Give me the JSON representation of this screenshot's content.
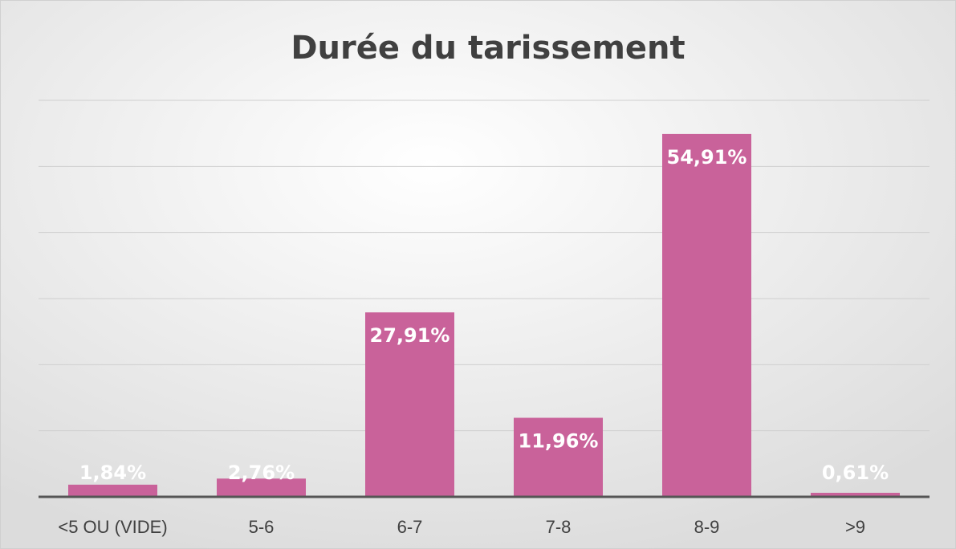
{
  "chart_data": {
    "type": "bar",
    "title": "Durée du tarissement",
    "categories": [
      "<5 OU (VIDE)",
      "5-6",
      "6-7",
      "7-8",
      "8-9",
      ">9"
    ],
    "values": [
      1.84,
      2.76,
      27.91,
      11.96,
      54.91,
      0.61
    ],
    "value_labels": [
      "1,84%",
      "2,76%",
      "27,91%",
      "11,96%",
      "54,91%",
      "0,61%"
    ],
    "color": "#c9629a",
    "ylim": [
      0,
      60
    ],
    "yticks": [
      0,
      10,
      20,
      30,
      40,
      50,
      60
    ],
    "grid": true
  }
}
